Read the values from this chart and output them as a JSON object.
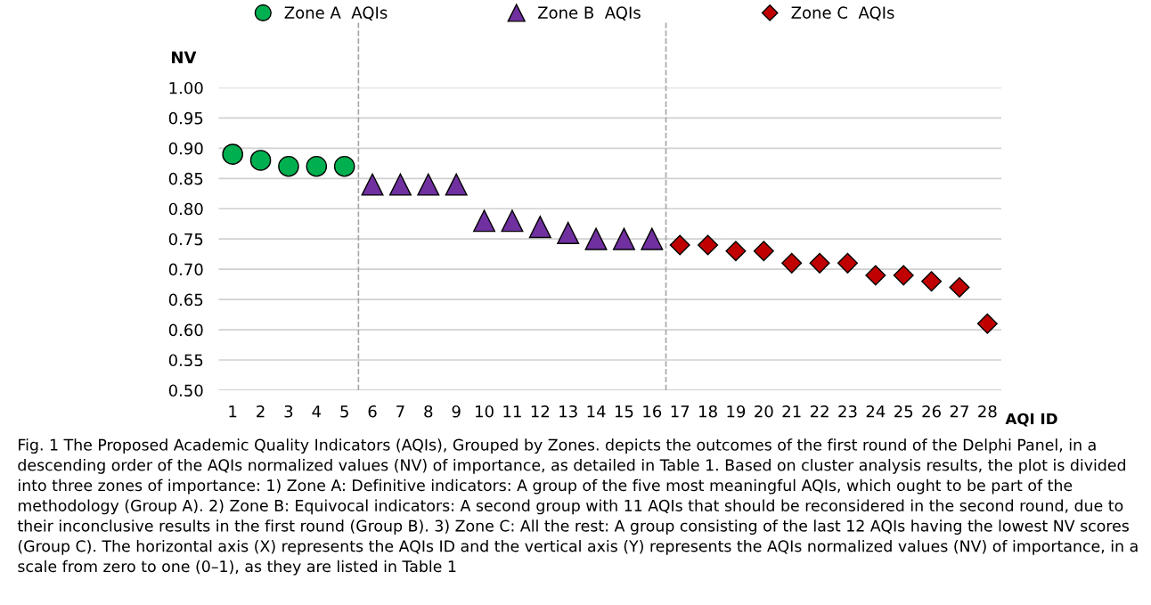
{
  "chart_data": {
    "type": "scatter",
    "ylabel": "NV",
    "xlabel": "AQI ID",
    "xlim": [
      0.5,
      28.5
    ],
    "xticks": [
      1,
      2,
      3,
      4,
      5,
      6,
      7,
      8,
      9,
      10,
      11,
      12,
      13,
      14,
      15,
      16,
      17,
      18,
      19,
      20,
      21,
      22,
      23,
      24,
      25,
      26,
      27,
      28
    ],
    "ylim": [
      0.5,
      1.0
    ],
    "yticks": [
      {
        "value": 0.5,
        "label": "0.50"
      },
      {
        "value": 0.55,
        "label": "0.55"
      },
      {
        "value": 0.6,
        "label": "0.60"
      },
      {
        "value": 0.65,
        "label": "0.65"
      },
      {
        "value": 0.7,
        "label": "0.70"
      },
      {
        "value": 0.75,
        "label": "0.75"
      },
      {
        "value": 0.8,
        "label": "0.80"
      },
      {
        "value": 0.85,
        "label": "0.85"
      },
      {
        "value": 0.9,
        "label": "0.90"
      },
      {
        "value": 0.95,
        "label": "0.95"
      },
      {
        "value": 1.0,
        "label": "1.00"
      }
    ],
    "grid": "y",
    "legend": "top",
    "series": [
      {
        "name": "Zone A  AQIs",
        "color": "#00b050",
        "marker": "circle",
        "x": [
          1,
          2,
          3,
          4,
          5
        ],
        "values": [
          0.89,
          0.88,
          0.87,
          0.87,
          0.87
        ]
      },
      {
        "name": "Zone B  AQIs",
        "color": "#7030a0",
        "marker": "triangle",
        "x": [
          6,
          7,
          8,
          9,
          10,
          11,
          12,
          13,
          14,
          15,
          16
        ],
        "values": [
          0.84,
          0.84,
          0.84,
          0.84,
          0.78,
          0.78,
          0.77,
          0.76,
          0.75,
          0.75,
          0.75
        ]
      },
      {
        "name": "Zone C  AQIs",
        "color": "#c00000",
        "marker": "diamond",
        "x": [
          17,
          18,
          19,
          20,
          21,
          22,
          23,
          24,
          25,
          26,
          27,
          28
        ],
        "values": [
          0.74,
          0.74,
          0.73,
          0.73,
          0.71,
          0.71,
          0.71,
          0.69,
          0.69,
          0.68,
          0.67,
          0.61
        ]
      }
    ],
    "ref_lines": [
      {
        "axis": "x",
        "value": 5.5,
        "color": "#a6a6a6",
        "line_style": "dashed"
      },
      {
        "axis": "x",
        "value": 16.5,
        "color": "#a6a6a6",
        "line_style": "dashed"
      }
    ],
    "annotations": [
      "Fig. 1 The Proposed Academic Quality Indicators (AQIs), Grouped by Zones. depicts the outcomes of the first round of the Delphi Panel, in a descending order of the AQIs normalized values (NV) of importance, as detailed in Table 1. Based on cluster analysis results, the plot is divided into three zones of importance: 1) Zone A: Definitive indicators: A group of the five most meaningful AQIs, which ought to be part of the methodology (Group A). 2) Zone B: Equivocal indicators: A second group with 11 AQIs that should be reconsidered in the second round, due to their inconclusive results in the first round (Group B). 3) Zone C: All the rest: A group consisting of the last 12 AQIs having the lowest NV scores (Group C). The horizontal axis (X) represents the AQIs ID and the vertical axis (Y) represents the AQIs normalized values (NV) of importance, in a scale from zero to one (0–1), as they are listed in Table 1"
    ]
  }
}
